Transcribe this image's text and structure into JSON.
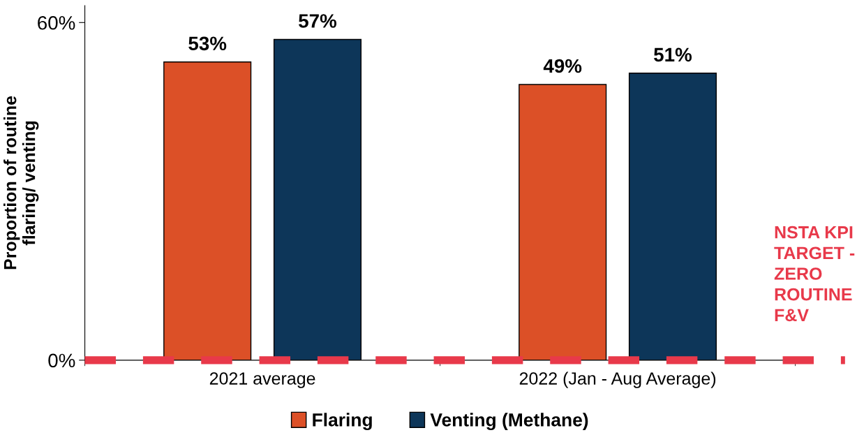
{
  "chart_data": {
    "type": "bar",
    "ylabel": "Proportion of routine\nflaring/ venting",
    "categories": [
      "2021 average",
      "2022 (Jan - Aug Average)"
    ],
    "series": [
      {
        "name": "Flaring",
        "color": "#dc5027",
        "values": [
          53,
          49
        ],
        "value_labels": [
          "53%",
          "49%"
        ]
      },
      {
        "name": "Venting (Methane)",
        "color": "#0d3659",
        "values": [
          57,
          51
        ],
        "value_labels": [
          "57%",
          "51%"
        ]
      }
    ],
    "ylim": [
      0,
      63
    ],
    "yticks": [
      {
        "value": 0,
        "label": "0%"
      },
      {
        "value": 60,
        "label": "60%"
      }
    ],
    "ref_lines": [
      {
        "axis": "y",
        "value": 0,
        "label": "NSTA KPI\nTARGET -\nZERO\nROUTINE\nF&V",
        "color": "#e8394a",
        "line_style": "dashed"
      }
    ],
    "legend": "bottom",
    "grid": false
  }
}
